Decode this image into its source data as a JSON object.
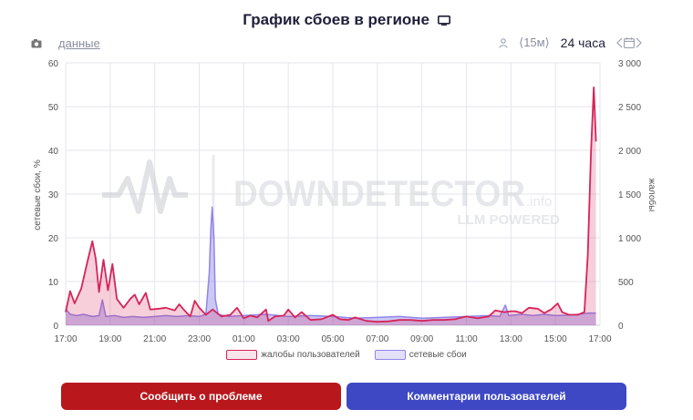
{
  "header": {
    "title": "График сбоев в регионе",
    "title_icon": "tv-icon"
  },
  "toolbar": {
    "camera_icon": "camera-icon",
    "data_link": "данные",
    "person_icon": "person-icon",
    "interval": "⟨15м⟩",
    "period": "24 часа",
    "calendar_icon": "calendar-icon"
  },
  "colors": {
    "complaints": "#d6245a",
    "outages": "#8f86e8",
    "report_button": "#b8171c",
    "comments_button": "#3e48c4"
  },
  "watermark": {
    "main": "DOWNDETECTOR",
    "suffix": ".info",
    "sub": "LLM POWERED"
  },
  "legend": {
    "complaints": "жалобы пользователей",
    "outages": "сетевые сбои"
  },
  "buttons": {
    "report": "Сообщить о проблеме",
    "comments": "Комментарии пользователей"
  },
  "chart_data": {
    "type": "area",
    "title": "График сбоев в регионе",
    "ylabel_left": "сетевые сбои, %",
    "ylabel_right": "жалобы",
    "y_left_range": [
      0,
      60
    ],
    "y_left_ticks": [
      "0",
      "10",
      "20",
      "30",
      "40",
      "50",
      "60"
    ],
    "y_right_range": [
      0,
      3000
    ],
    "y_right_ticks": [
      "0",
      "500",
      "1 000",
      "1 500",
      "2 000",
      "2 500",
      "3 000"
    ],
    "x_range": [
      17,
      41
    ],
    "x_ticks": [
      "17:00",
      "19:00",
      "21:00",
      "23:00",
      "01:00",
      "03:00",
      "05:00",
      "07:00",
      "09:00",
      "11:00",
      "13:00",
      "15:00",
      "17:00"
    ],
    "grid": true,
    "legend_position": "bottom",
    "series": [
      {
        "name": "жалобы пользователей",
        "axis": "right",
        "points": [
          [
            17.0,
            150
          ],
          [
            17.2,
            390
          ],
          [
            17.4,
            250
          ],
          [
            17.7,
            420
          ],
          [
            18.0,
            750
          ],
          [
            18.2,
            960
          ],
          [
            18.35,
            760
          ],
          [
            18.5,
            380
          ],
          [
            18.7,
            750
          ],
          [
            18.9,
            400
          ],
          [
            19.1,
            700
          ],
          [
            19.3,
            300
          ],
          [
            19.6,
            200
          ],
          [
            19.9,
            300
          ],
          [
            20.1,
            350
          ],
          [
            20.3,
            240
          ],
          [
            20.6,
            370
          ],
          [
            20.8,
            180
          ],
          [
            21.2,
            190
          ],
          [
            21.5,
            200
          ],
          [
            21.9,
            170
          ],
          [
            22.1,
            240
          ],
          [
            22.3,
            180
          ],
          [
            22.6,
            100
          ],
          [
            22.8,
            280
          ],
          [
            23.0,
            200
          ],
          [
            23.3,
            120
          ],
          [
            23.6,
            180
          ],
          [
            24.0,
            100
          ],
          [
            24.4,
            120
          ],
          [
            24.7,
            200
          ],
          [
            25.0,
            80
          ],
          [
            25.3,
            110
          ],
          [
            25.6,
            90
          ],
          [
            26.0,
            180
          ],
          [
            26.1,
            50
          ],
          [
            26.4,
            100
          ],
          [
            26.8,
            110
          ],
          [
            27.0,
            180
          ],
          [
            27.3,
            90
          ],
          [
            27.6,
            150
          ],
          [
            28.0,
            60
          ],
          [
            28.5,
            70
          ],
          [
            29.0,
            120
          ],
          [
            29.3,
            70
          ],
          [
            29.7,
            60
          ],
          [
            30.0,
            90
          ],
          [
            30.5,
            50
          ],
          [
            31.0,
            40
          ],
          [
            31.5,
            45
          ],
          [
            32.0,
            60
          ],
          [
            32.5,
            60
          ],
          [
            33.0,
            50
          ],
          [
            33.5,
            60
          ],
          [
            34.0,
            60
          ],
          [
            34.5,
            70
          ],
          [
            35.0,
            100
          ],
          [
            35.5,
            80
          ],
          [
            36.0,
            100
          ],
          [
            36.3,
            170
          ],
          [
            36.7,
            150
          ],
          [
            37.0,
            160
          ],
          [
            37.2,
            160
          ],
          [
            37.5,
            140
          ],
          [
            37.8,
            200
          ],
          [
            38.2,
            190
          ],
          [
            38.5,
            140
          ],
          [
            38.8,
            180
          ],
          [
            39.1,
            250
          ],
          [
            39.3,
            150
          ],
          [
            39.6,
            120
          ],
          [
            40.0,
            120
          ],
          [
            40.3,
            150
          ],
          [
            40.45,
            800
          ],
          [
            40.6,
            2000
          ],
          [
            40.72,
            2720
          ],
          [
            40.82,
            2100
          ]
        ]
      },
      {
        "name": "сетевые сбои",
        "axis": "left",
        "points": [
          [
            17.0,
            3.8
          ],
          [
            17.2,
            2.5
          ],
          [
            17.5,
            2.2
          ],
          [
            17.8,
            2.5
          ],
          [
            18.2,
            2.0
          ],
          [
            18.5,
            2.2
          ],
          [
            18.65,
            5.8
          ],
          [
            18.8,
            2.0
          ],
          [
            19.2,
            2.2
          ],
          [
            19.6,
            1.8
          ],
          [
            20.0,
            2.0
          ],
          [
            20.5,
            1.8
          ],
          [
            21.0,
            2.0
          ],
          [
            21.5,
            2.2
          ],
          [
            22.0,
            2.0
          ],
          [
            22.5,
            2.2
          ],
          [
            23.0,
            2.0
          ],
          [
            23.3,
            2.5
          ],
          [
            23.45,
            12.0
          ],
          [
            23.52,
            22.0
          ],
          [
            23.58,
            27.0
          ],
          [
            23.66,
            20.0
          ],
          [
            23.72,
            6.0
          ],
          [
            23.85,
            2.5
          ],
          [
            24.3,
            2.0
          ],
          [
            25.0,
            2.2
          ],
          [
            26.0,
            2.5
          ],
          [
            27.0,
            2.0
          ],
          [
            28.0,
            2.2
          ],
          [
            29.0,
            2.0
          ],
          [
            30.0,
            1.6
          ],
          [
            31.0,
            1.8
          ],
          [
            32.0,
            2.0
          ],
          [
            33.0,
            1.6
          ],
          [
            34.0,
            1.8
          ],
          [
            35.0,
            2.0
          ],
          [
            36.0,
            2.2
          ],
          [
            36.5,
            2.0
          ],
          [
            36.75,
            4.6
          ],
          [
            36.9,
            2.2
          ],
          [
            37.5,
            2.5
          ],
          [
            38.0,
            2.2
          ],
          [
            38.5,
            2.5
          ],
          [
            39.0,
            2.2
          ],
          [
            39.5,
            2.3
          ],
          [
            40.0,
            2.5
          ],
          [
            40.5,
            2.8
          ],
          [
            40.82,
            2.8
          ]
        ]
      }
    ]
  }
}
